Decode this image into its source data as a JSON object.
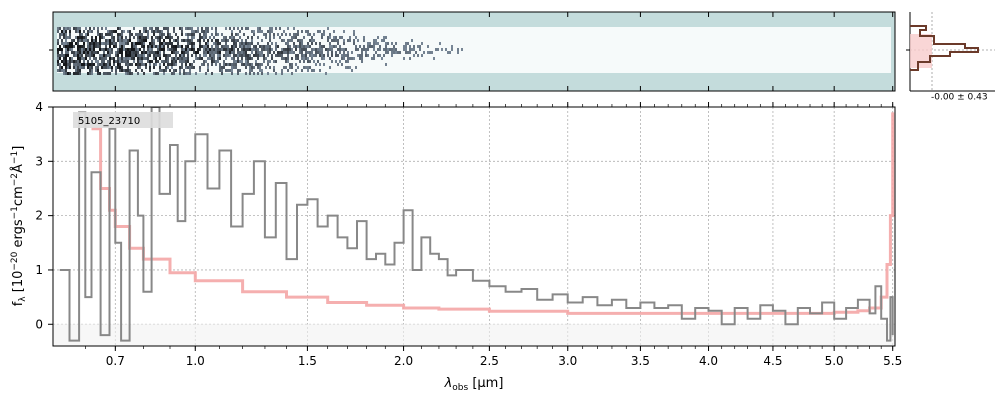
{
  "chart_data": {
    "type": "line",
    "object_label": "5105_23710",
    "xlabel_main": "λ",
    "xlabel_sub": "obs",
    "xlabel_units": " [μm]",
    "ylabel_main": "f",
    "ylabel_sub": "λ",
    "ylabel_units": " [10",
    "ylabel_exp1": "−20",
    "ylabel_mid1": " ergs",
    "ylabel_exp2": "−1",
    "ylabel_mid2": "cm",
    "ylabel_exp3": "−2",
    "ylabel_mid3": "Å",
    "ylabel_exp4": "−1",
    "ylabel_end": "]",
    "xlim": [
      0.5,
      5.52
    ],
    "ylim": [
      -0.4,
      4.0
    ],
    "x_ticks": [
      0.7,
      1.0,
      1.5,
      2.0,
      2.5,
      3.0,
      3.5,
      4.0,
      4.5,
      5.0,
      5.5
    ],
    "x_tick_labels": [
      "0.7",
      "1.0",
      "1.5",
      "2.0",
      "2.5",
      "3.0",
      "3.5",
      "4.0",
      "4.5",
      "5.0",
      "5.5"
    ],
    "y_ticks": [
      0,
      1,
      2,
      3,
      4
    ],
    "y_tick_labels": [
      "0",
      "1",
      "2",
      "3",
      "4"
    ],
    "grid": true,
    "series": [
      {
        "role": "flux",
        "color": "#888888",
        "x": [
          0.52,
          0.55,
          0.58,
          0.6,
          0.62,
          0.65,
          0.68,
          0.7,
          0.72,
          0.75,
          0.78,
          0.8,
          0.83,
          0.86,
          0.9,
          0.93,
          0.96,
          1.0,
          1.05,
          1.1,
          1.15,
          1.2,
          1.25,
          1.3,
          1.35,
          1.4,
          1.45,
          1.5,
          1.55,
          1.6,
          1.65,
          1.7,
          1.75,
          1.8,
          1.85,
          1.9,
          1.95,
          2.0,
          2.05,
          2.1,
          2.15,
          2.2,
          2.25,
          2.3,
          2.4,
          2.5,
          2.6,
          2.7,
          2.8,
          2.9,
          3.0,
          3.1,
          3.2,
          3.3,
          3.4,
          3.5,
          3.6,
          3.7,
          3.8,
          3.9,
          4.0,
          4.1,
          4.2,
          4.3,
          4.4,
          4.5,
          4.6,
          4.7,
          4.8,
          4.9,
          5.0,
          5.1,
          5.2,
          5.3,
          5.35,
          5.4,
          5.45,
          5.48,
          5.5
        ],
        "y": [
          1.0,
          -0.3,
          3.9,
          0.5,
          2.8,
          -0.2,
          3.6,
          1.5,
          -0.3,
          3.2,
          2.0,
          0.6,
          4.0,
          2.4,
          3.3,
          1.9,
          3.0,
          3.5,
          2.5,
          3.2,
          1.8,
          2.4,
          3.0,
          1.6,
          2.6,
          1.2,
          2.2,
          2.3,
          1.8,
          2.0,
          1.6,
          1.4,
          1.9,
          1.2,
          1.3,
          1.1,
          1.5,
          2.1,
          1.0,
          1.6,
          1.3,
          1.2,
          0.9,
          1.0,
          0.8,
          0.7,
          0.6,
          0.65,
          0.45,
          0.55,
          0.4,
          0.5,
          0.35,
          0.45,
          0.3,
          0.4,
          0.3,
          0.35,
          0.1,
          0.3,
          0.25,
          0.0,
          0.3,
          0.1,
          0.35,
          0.25,
          0.0,
          0.3,
          0.2,
          0.4,
          0.1,
          0.3,
          0.45,
          0.2,
          0.7,
          0.1,
          -0.3,
          0.5,
          -0.2
        ]
      },
      {
        "role": "error",
        "color": "#f4a6a6",
        "x": [
          0.62,
          0.65,
          0.68,
          0.7,
          0.75,
          0.8,
          0.9,
          1.0,
          1.2,
          1.4,
          1.6,
          1.8,
          2.0,
          2.2,
          2.5,
          3.0,
          3.5,
          4.0,
          4.5,
          5.0,
          5.2,
          5.3,
          5.4,
          5.45,
          5.48,
          5.5
        ],
        "y": [
          3.6,
          2.5,
          2.1,
          1.8,
          1.4,
          1.2,
          0.95,
          0.8,
          0.6,
          0.5,
          0.4,
          0.35,
          0.3,
          0.28,
          0.24,
          0.2,
          0.2,
          0.2,
          0.2,
          0.22,
          0.25,
          0.3,
          0.5,
          1.1,
          2.0,
          3.9
        ]
      }
    ],
    "hist_label": "-0.00 ± 0.43"
  }
}
